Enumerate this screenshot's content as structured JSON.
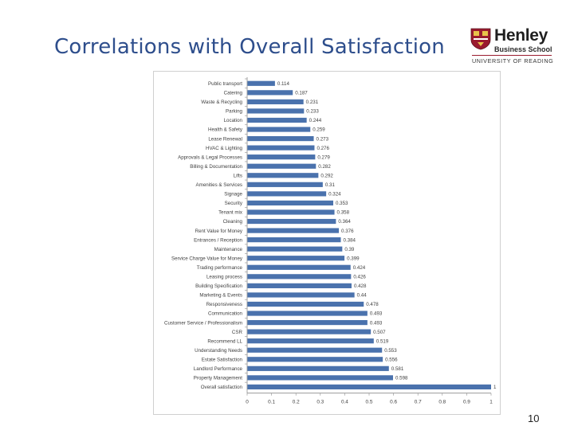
{
  "slide": {
    "title": "Correlations with Overall Satisfaction",
    "page_number": "10"
  },
  "logo": {
    "name": "Henley",
    "subtitle": "Business School",
    "university": "UNIVERSITY OF READING"
  },
  "colors": {
    "title": "#2e4e8c",
    "bar": "#4a72ad",
    "logo_accent": "#9a1b2f"
  },
  "chart_data": {
    "type": "bar",
    "orientation": "horizontal",
    "categories": [
      "Public transport",
      "Catering",
      "Waste & Recycling",
      "Parking",
      "Location",
      "Health & Safety",
      "Lease Renewal",
      "HVAC & Lighting",
      "Approvals & Legal Processes",
      "Billing & Documentation",
      "Lifts",
      "Amenities & Services",
      "Signage",
      "Security",
      "Tenant mix",
      "Cleaning",
      "Rent Value for Money",
      "Entrances / Reception",
      "Maintenance",
      "Service Charge Value for Money",
      "Trading performance",
      "Leasing process",
      "Building Specification",
      "Marketing & Events",
      "Responsiveness",
      "Communication",
      "Customer Service / Professionalism",
      "CSR",
      "Recommend LL",
      "Understanding Needs",
      "Estate Satisfaction",
      "Landlord Performance",
      "Property Management",
      "Overall satisfaction"
    ],
    "values": [
      0.114,
      0.187,
      0.231,
      0.233,
      0.244,
      0.259,
      0.273,
      0.276,
      0.279,
      0.282,
      0.292,
      0.31,
      0.324,
      0.353,
      0.358,
      0.364,
      0.376,
      0.384,
      0.39,
      0.399,
      0.424,
      0.426,
      0.428,
      0.44,
      0.478,
      0.493,
      0.493,
      0.507,
      0.519,
      0.553,
      0.556,
      0.581,
      0.598,
      1
    ],
    "value_labels": [
      "0.114",
      "0.187",
      "0.231",
      "0.233",
      "0.244",
      "0.259",
      "0.273",
      "0.276",
      "0.279",
      "0.282",
      "0.292",
      "0.31",
      "0.324",
      "0.353",
      "0.358",
      "0.364",
      "0.376",
      "0.384",
      "0.39",
      "0.399",
      "0.424",
      "0.426",
      "0.428",
      "0.44",
      "0.478",
      "0.493",
      "0.493",
      "0.507",
      "0.519",
      "0.553",
      "0.556",
      "0.581",
      "0.598",
      "1"
    ],
    "xlim": [
      0,
      1
    ],
    "xticks": [
      0,
      0.1,
      0.2,
      0.3,
      0.4,
      0.5,
      0.6,
      0.7,
      0.8,
      0.9,
      1
    ],
    "xtick_labels": [
      "0",
      "0.1",
      "0.2",
      "0.3",
      "0.4",
      "0.5",
      "0.6",
      "0.7",
      "0.8",
      "0.9",
      "1"
    ],
    "grid": false,
    "legend": "none"
  }
}
